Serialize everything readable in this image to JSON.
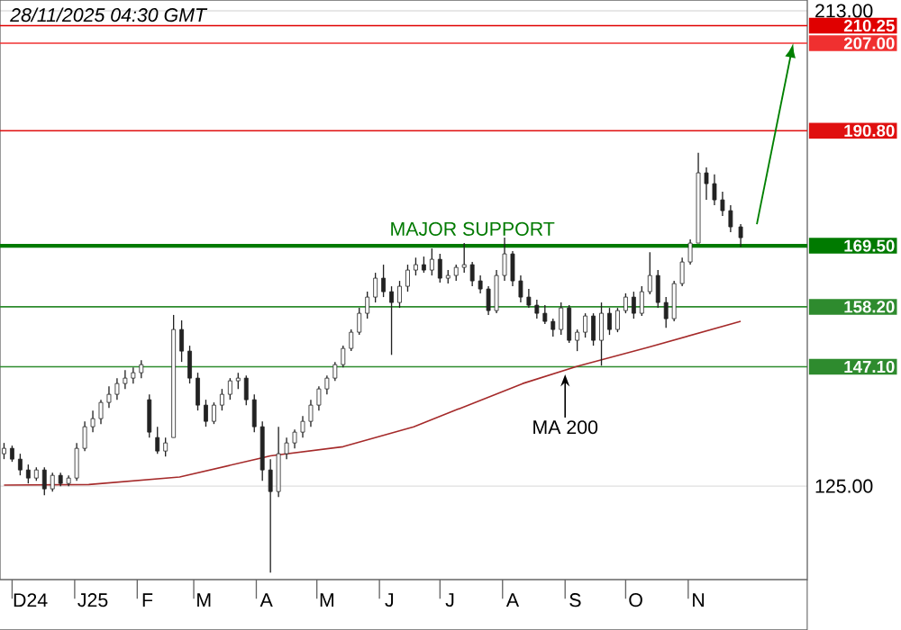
{
  "chart_data": {
    "type": "candlestick",
    "color": "#222222",
    "x": [
      "2024-11-27",
      "2024-12-01",
      "2024-12-05",
      "2024-12-09",
      "2024-12-13",
      "2024-12-17",
      "2024-12-21",
      "2024-12-25",
      "2024-12-29",
      "2025-01-02",
      "2025-01-06",
      "2025-01-10",
      "2025-01-14",
      "2025-01-18",
      "2025-01-22",
      "2025-01-26",
      "2025-01-30",
      "2025-02-03",
      "2025-02-07",
      "2025-02-11",
      "2025-02-15",
      "2025-02-19",
      "2025-02-23",
      "2025-02-27",
      "2025-03-03",
      "2025-03-07",
      "2025-03-11",
      "2025-03-15",
      "2025-03-19",
      "2025-03-23",
      "2025-03-27",
      "2025-03-31",
      "2025-04-04",
      "2025-04-08",
      "2025-04-12",
      "2025-04-16",
      "2025-04-20",
      "2025-04-24",
      "2025-04-28",
      "2025-05-02",
      "2025-05-06",
      "2025-05-10",
      "2025-05-14",
      "2025-05-18",
      "2025-05-22",
      "2025-05-26",
      "2025-05-30",
      "2025-06-03",
      "2025-06-07",
      "2025-06-11",
      "2025-06-15",
      "2025-06-19",
      "2025-06-23",
      "2025-06-27",
      "2025-07-01",
      "2025-07-05",
      "2025-07-09",
      "2025-07-13",
      "2025-07-17",
      "2025-07-21",
      "2025-07-25",
      "2025-07-29",
      "2025-08-02",
      "2025-08-06",
      "2025-08-10",
      "2025-08-14",
      "2025-08-18",
      "2025-08-22",
      "2025-08-26",
      "2025-08-30",
      "2025-09-03",
      "2025-09-07",
      "2025-09-11",
      "2025-09-15",
      "2025-09-19",
      "2025-09-23",
      "2025-09-27",
      "2025-10-01",
      "2025-10-05",
      "2025-10-09",
      "2025-10-13",
      "2025-10-17",
      "2025-10-21",
      "2025-10-25",
      "2025-10-29",
      "2025-11-02",
      "2025-11-06",
      "2025-11-10",
      "2025-11-14",
      "2025-11-18",
      "2025-11-22",
      "2025-11-27"
    ],
    "ohlc": [
      [
        131,
        133,
        130,
        132
      ],
      [
        132,
        132.5,
        129.5,
        130
      ],
      [
        130,
        131,
        127,
        128
      ],
      [
        128,
        129,
        125.5,
        126.5
      ],
      [
        126.5,
        128.5,
        126,
        128
      ],
      [
        128,
        128.5,
        123.3,
        124.5
      ],
      [
        124.5,
        127.5,
        124,
        127
      ],
      [
        127,
        127.5,
        125,
        125.5
      ],
      [
        125.5,
        127,
        125,
        126.5
      ],
      [
        126.5,
        133,
        126,
        132
      ],
      [
        132,
        137,
        131.5,
        136
      ],
      [
        136,
        139,
        135,
        137.5
      ],
      [
        137.5,
        141,
        136.5,
        140.5
      ],
      [
        140.5,
        143.5,
        139.5,
        142
      ],
      [
        142,
        145,
        141,
        144
      ],
      [
        144,
        146.5,
        143,
        145
      ],
      [
        145,
        147,
        144,
        146
      ],
      [
        146,
        148.3,
        145,
        147.5
      ],
      [
        141,
        142,
        134,
        135
      ],
      [
        134,
        136,
        131,
        131.5
      ],
      [
        131.5,
        134,
        130.5,
        133
      ],
      [
        134,
        156.7,
        134,
        154
      ],
      [
        154,
        155.7,
        148,
        150
      ],
      [
        150,
        151,
        144,
        145
      ],
      [
        145,
        146,
        139,
        140
      ],
      [
        140,
        141,
        136,
        137
      ],
      [
        137,
        140.5,
        136.5,
        140
      ],
      [
        140,
        143,
        139,
        142
      ],
      [
        142,
        145,
        141,
        144.5
      ],
      [
        144.5,
        146,
        143,
        145
      ],
      [
        145,
        145.5,
        140,
        141
      ],
      [
        141,
        142,
        135,
        136
      ],
      [
        136,
        137,
        126,
        128
      ],
      [
        128,
        130,
        109,
        124
      ],
      [
        124,
        136,
        123,
        131
      ],
      [
        131,
        134,
        130,
        133
      ],
      [
        133,
        135.5,
        132,
        135
      ],
      [
        135,
        138,
        134,
        137
      ],
      [
        137,
        141,
        136,
        140
      ],
      [
        140,
        143.5,
        139,
        143
      ],
      [
        143,
        145.5,
        142,
        145
      ],
      [
        145,
        148,
        144.5,
        147.5
      ],
      [
        147.5,
        151,
        147,
        150.5
      ],
      [
        150.5,
        154,
        150,
        153.5
      ],
      [
        153.5,
        158,
        153,
        157
      ],
      [
        157,
        161,
        156,
        160
      ],
      [
        160,
        164.5,
        159,
        163.5
      ],
      [
        163.5,
        166,
        160,
        161
      ],
      [
        161,
        162,
        149.3,
        159
      ],
      [
        159,
        163,
        158,
        162
      ],
      [
        162,
        166,
        161,
        165
      ],
      [
        165,
        167.3,
        164,
        166
      ],
      [
        166,
        167.5,
        164.5,
        165
      ],
      [
        165,
        169,
        164,
        167
      ],
      [
        167,
        168,
        162.7,
        163.5
      ],
      [
        163.5,
        165,
        162.5,
        164
      ],
      [
        164,
        166,
        163,
        165.5
      ],
      [
        165.5,
        170,
        164.5,
        166
      ],
      [
        166,
        166.5,
        162,
        163
      ],
      [
        163,
        164,
        160.7,
        161.5
      ],
      [
        161.5,
        162,
        156.7,
        157.5
      ],
      [
        157.5,
        165,
        157,
        164
      ],
      [
        164,
        171,
        163,
        168
      ],
      [
        168,
        168.5,
        162,
        163
      ],
      [
        163,
        164,
        159,
        160
      ],
      [
        160,
        161.5,
        158,
        158.5
      ],
      [
        158.5,
        159.5,
        156,
        157
      ],
      [
        157,
        158.5,
        155,
        155.5
      ],
      [
        155.5,
        156,
        152.7,
        154
      ],
      [
        154,
        159,
        153,
        158
      ],
      [
        158,
        158.5,
        151.5,
        152
      ],
      [
        152,
        154,
        150,
        153.5
      ],
      [
        153.5,
        157,
        152.5,
        156.5
      ],
      [
        156.5,
        157,
        151,
        152
      ],
      [
        152,
        159,
        147.3,
        157
      ],
      [
        157,
        158,
        153,
        154
      ],
      [
        154,
        158,
        153.5,
        157.5
      ],
      [
        157.5,
        160.7,
        157,
        160
      ],
      [
        160,
        161,
        156,
        157
      ],
      [
        157,
        162,
        156.5,
        161
      ],
      [
        161,
        168.3,
        160.5,
        164
      ],
      [
        164,
        165,
        158,
        159
      ],
      [
        159,
        160,
        154.3,
        156
      ],
      [
        156,
        163,
        155.5,
        162.5
      ],
      [
        162.5,
        167.3,
        162,
        166.5
      ],
      [
        166.5,
        170.7,
        166,
        170
      ],
      [
        170,
        186.7,
        170,
        183
      ],
      [
        183,
        184,
        178,
        181
      ],
      [
        181,
        182.7,
        177,
        178
      ],
      [
        178,
        179.5,
        175,
        176
      ],
      [
        176,
        177,
        172,
        173
      ],
      [
        173,
        173.5,
        169.3,
        171
      ]
    ],
    "series": [
      {
        "type": "line",
        "color": "#a52a2a",
        "x": [
          "2024-11-27",
          "2025-01-08",
          "2025-02-22",
          "2025-04-08",
          "2025-05-14",
          "2025-06-18",
          "2025-07-15",
          "2025-08-11",
          "2025-09-07",
          "2025-10-12",
          "2025-11-27"
        ],
        "values": [
          125.2,
          125.3,
          126.7,
          130.6,
          132.3,
          136,
          140,
          144,
          147.2,
          150.7,
          155.5
        ]
      }
    ],
    "xlim": [
      "2024-11-25",
      "2025-12-30"
    ],
    "xticks": [
      {
        "value": "2024-12-01",
        "label": null
      },
      {
        "value": "2025-01-01",
        "label": null
      },
      {
        "value": "2025-02-01",
        "label": null
      },
      {
        "value": "2025-03-01",
        "label": null
      },
      {
        "value": "2025-04-01",
        "label": null
      },
      {
        "value": "2025-05-01",
        "label": null
      },
      {
        "value": "2025-06-01",
        "label": null
      },
      {
        "value": "2025-07-01",
        "label": null
      },
      {
        "value": "2025-08-01",
        "label": null
      },
      {
        "value": "2025-09-01",
        "label": null
      },
      {
        "value": "2025-10-01",
        "label": null
      },
      {
        "value": "2025-11-01",
        "label": null
      },
      {
        "value": "2024-12-10",
        "label": "D24"
      },
      {
        "value": "2025-01-10",
        "label": "J25"
      },
      {
        "value": "2025-02-06",
        "label": "F"
      },
      {
        "value": "2025-03-06",
        "label": "M"
      },
      {
        "value": "2025-04-06",
        "label": "A"
      },
      {
        "value": "2025-05-06",
        "label": "M"
      },
      {
        "value": "2025-06-06",
        "label": "J"
      },
      {
        "value": "2025-07-06",
        "label": "J"
      },
      {
        "value": "2025-08-06",
        "label": "A"
      },
      {
        "value": "2025-09-06",
        "label": "S"
      },
      {
        "value": "2025-10-06",
        "label": "O"
      },
      {
        "value": "2025-11-06",
        "label": "N"
      }
    ],
    "ylim": [
      107.7,
      215
    ],
    "yticks": [
      {
        "value": 125,
        "label": "125.00"
      },
      {
        "value": 213,
        "label": "213.00"
      }
    ],
    "grid": "y",
    "ref_lines": [
      {
        "axis": "y",
        "value": 147.1,
        "label": "147.10",
        "color": "#2e8b2e"
      },
      {
        "axis": "y",
        "value": 158.2,
        "label": "158.20",
        "color": "#2e8b2e"
      },
      {
        "axis": "y",
        "value": 169.5,
        "label": "169.50",
        "color": "#007a00"
      },
      {
        "axis": "y",
        "value": 190.8,
        "label": "190.80",
        "color": "#e01010"
      },
      {
        "axis": "y",
        "value": 207.0,
        "label": "207.00",
        "color": "#f03030"
      },
      {
        "axis": "y",
        "value": 210.25,
        "label": "210.25",
        "color": "#e00000"
      }
    ],
    "annotations": [
      "28/11/2025 04:30 GMT",
      {
        "text": "MAJOR SUPPORT",
        "x": "2025-07-17",
        "y": 169.5
      },
      {
        "text": "MA 200",
        "x": "2025-09-01",
        "y": 145.7
      }
    ]
  }
}
